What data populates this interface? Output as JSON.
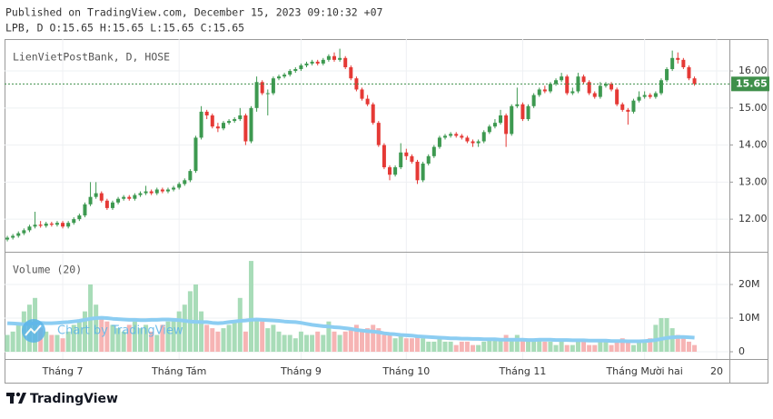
{
  "header": {
    "published": "Published on TradingView.com, December 15, 2023 09:10:32 +07",
    "symbol_line": "LPB, D O:15.65 H:15.65 L:15.65 C:15.65"
  },
  "watermark": "Chart by TradingView",
  "footer": {
    "brand": "TradingView"
  },
  "chart_data": [
    {
      "type": "candlestick",
      "legend": "LienVietPostBank, D, HOSE",
      "up_color": "#3d9950",
      "down_color": "#e53935",
      "grid": true,
      "last_price": 15.65,
      "last_price_color": "#3f8f4a",
      "xlim": [
        -0.5,
        130.3
      ],
      "xticks": [
        {
          "value": 10,
          "label": "Tháng 7"
        },
        {
          "value": 31,
          "label": "Tháng Tám"
        },
        {
          "value": 53,
          "label": "Tháng 9"
        },
        {
          "value": 72,
          "label": "Tháng 10"
        },
        {
          "value": 93,
          "label": "Tháng 11"
        },
        {
          "value": 115,
          "label": "Tháng Mười hai"
        },
        {
          "value": 128,
          "label": "20"
        }
      ],
      "ylim": [
        11.12,
        16.86
      ],
      "yticks": [
        {
          "value": 12,
          "label": "12.00"
        },
        {
          "value": 13,
          "label": "13.00"
        },
        {
          "value": 14,
          "label": "14.00"
        },
        {
          "value": 15,
          "label": "15.00"
        },
        {
          "value": 16,
          "label": "16.00"
        }
      ],
      "ohlc": [
        [
          11.45,
          11.55,
          11.4,
          11.5
        ],
        [
          11.5,
          11.6,
          11.45,
          11.55
        ],
        [
          11.55,
          11.67,
          11.5,
          11.62
        ],
        [
          11.62,
          11.75,
          11.57,
          11.7
        ],
        [
          11.7,
          11.85,
          11.65,
          11.8
        ],
        [
          11.8,
          12.2,
          11.75,
          11.85
        ],
        [
          11.85,
          11.95,
          11.77,
          11.82
        ],
        [
          11.82,
          11.93,
          11.77,
          11.88
        ],
        [
          11.88,
          11.93,
          11.8,
          11.85
        ],
        [
          11.85,
          11.95,
          11.8,
          11.9
        ],
        [
          11.9,
          11.95,
          11.75,
          11.8
        ],
        [
          11.8,
          11.95,
          11.75,
          11.9
        ],
        [
          11.9,
          12.05,
          11.85,
          12.0
        ],
        [
          12.0,
          12.15,
          11.95,
          12.1
        ],
        [
          12.1,
          12.45,
          12.05,
          12.4
        ],
        [
          12.4,
          13.0,
          12.35,
          12.6
        ],
        [
          12.6,
          13.0,
          12.55,
          12.7
        ],
        [
          12.7,
          12.75,
          12.45,
          12.5
        ],
        [
          12.5,
          12.55,
          12.25,
          12.3
        ],
        [
          12.3,
          12.5,
          12.25,
          12.45
        ],
        [
          12.45,
          12.6,
          12.4,
          12.55
        ],
        [
          12.55,
          12.65,
          12.5,
          12.6
        ],
        [
          12.6,
          12.65,
          12.5,
          12.55
        ],
        [
          12.55,
          12.7,
          12.5,
          12.65
        ],
        [
          12.65,
          12.75,
          12.6,
          12.7
        ],
        [
          12.7,
          12.9,
          12.65,
          12.75
        ],
        [
          12.75,
          12.8,
          12.65,
          12.7
        ],
        [
          12.7,
          12.85,
          12.65,
          12.8
        ],
        [
          12.8,
          12.85,
          12.7,
          12.75
        ],
        [
          12.75,
          12.85,
          12.7,
          12.8
        ],
        [
          12.8,
          12.9,
          12.75,
          12.85
        ],
        [
          12.85,
          13.0,
          12.8,
          12.95
        ],
        [
          12.95,
          13.1,
          12.9,
          13.05
        ],
        [
          13.05,
          13.35,
          13.0,
          13.3
        ],
        [
          13.3,
          14.25,
          13.25,
          14.2
        ],
        [
          14.2,
          15.05,
          14.15,
          14.9
        ],
        [
          14.9,
          14.95,
          14.7,
          14.8
        ],
        [
          14.8,
          14.85,
          14.45,
          14.5
        ],
        [
          14.5,
          14.6,
          14.35,
          14.45
        ],
        [
          14.45,
          14.65,
          14.4,
          14.6
        ],
        [
          14.6,
          14.7,
          14.55,
          14.65
        ],
        [
          14.65,
          14.75,
          14.6,
          14.7
        ],
        [
          14.7,
          15.0,
          14.65,
          14.8
        ],
        [
          14.8,
          14.85,
          14.0,
          14.1
        ],
        [
          14.1,
          15.05,
          14.05,
          15.0
        ],
        [
          15.0,
          15.85,
          14.9,
          15.7
        ],
        [
          15.7,
          15.75,
          15.35,
          15.4
        ],
        [
          15.4,
          15.5,
          14.8,
          15.4
        ],
        [
          15.4,
          15.85,
          15.35,
          15.8
        ],
        [
          15.8,
          15.9,
          15.75,
          15.85
        ],
        [
          15.85,
          15.95,
          15.8,
          15.9
        ],
        [
          15.9,
          16.05,
          15.85,
          16.0
        ],
        [
          16.0,
          16.1,
          15.95,
          16.05
        ],
        [
          16.05,
          16.2,
          16.0,
          16.15
        ],
        [
          16.15,
          16.25,
          16.1,
          16.2
        ],
        [
          16.2,
          16.3,
          16.15,
          16.25
        ],
        [
          16.25,
          16.3,
          16.15,
          16.2
        ],
        [
          16.2,
          16.35,
          16.15,
          16.3
        ],
        [
          16.3,
          16.45,
          16.25,
          16.4
        ],
        [
          16.4,
          16.5,
          16.25,
          16.3
        ],
        [
          16.3,
          16.6,
          16.25,
          16.35
        ],
        [
          16.35,
          16.4,
          16.05,
          16.1
        ],
        [
          16.1,
          16.15,
          15.75,
          15.8
        ],
        [
          15.8,
          15.85,
          15.45,
          15.5
        ],
        [
          15.5,
          15.55,
          15.2,
          15.25
        ],
        [
          15.25,
          15.35,
          15.05,
          15.1
        ],
        [
          15.1,
          15.15,
          14.55,
          14.6
        ],
        [
          14.6,
          14.65,
          13.95,
          14.0
        ],
        [
          14.0,
          14.05,
          13.35,
          13.4
        ],
        [
          13.4,
          13.45,
          13.05,
          13.2
        ],
        [
          13.2,
          13.45,
          13.15,
          13.4
        ],
        [
          13.4,
          14.05,
          13.35,
          13.8
        ],
        [
          13.8,
          13.9,
          13.6,
          13.7
        ],
        [
          13.7,
          13.75,
          13.5,
          13.55
        ],
        [
          13.55,
          13.6,
          12.95,
          13.05
        ],
        [
          13.05,
          13.55,
          13.0,
          13.5
        ],
        [
          13.5,
          13.75,
          13.45,
          13.7
        ],
        [
          13.7,
          14.0,
          13.65,
          13.95
        ],
        [
          13.95,
          14.25,
          13.9,
          14.2
        ],
        [
          14.2,
          14.3,
          14.15,
          14.25
        ],
        [
          14.25,
          14.35,
          14.2,
          14.3
        ],
        [
          14.3,
          14.35,
          14.2,
          14.25
        ],
        [
          14.25,
          14.3,
          14.15,
          14.2
        ],
        [
          14.2,
          14.25,
          14.05,
          14.1
        ],
        [
          14.1,
          14.15,
          13.95,
          14.05
        ],
        [
          14.05,
          14.15,
          13.95,
          14.1
        ],
        [
          14.1,
          14.4,
          14.05,
          14.35
        ],
        [
          14.35,
          14.55,
          14.3,
          14.5
        ],
        [
          14.5,
          14.7,
          14.45,
          14.6
        ],
        [
          14.6,
          14.95,
          14.55,
          14.8
        ],
        [
          14.8,
          14.85,
          13.95,
          14.3
        ],
        [
          14.3,
          15.1,
          14.25,
          15.05
        ],
        [
          15.05,
          15.55,
          15.0,
          15.1
        ],
        [
          15.1,
          15.15,
          14.65,
          14.7
        ],
        [
          14.7,
          15.1,
          14.65,
          15.05
        ],
        [
          15.05,
          15.4,
          15.0,
          15.35
        ],
        [
          15.35,
          15.55,
          15.3,
          15.5
        ],
        [
          15.5,
          15.6,
          15.4,
          15.45
        ],
        [
          15.45,
          15.7,
          15.4,
          15.65
        ],
        [
          15.65,
          15.8,
          15.6,
          15.75
        ],
        [
          15.75,
          15.95,
          15.7,
          15.85
        ],
        [
          15.85,
          15.9,
          15.35,
          15.4
        ],
        [
          15.4,
          15.55,
          15.35,
          15.45
        ],
        [
          15.45,
          15.95,
          15.4,
          15.85
        ],
        [
          15.85,
          15.9,
          15.65,
          15.7
        ],
        [
          15.7,
          15.75,
          15.35,
          15.4
        ],
        [
          15.4,
          15.45,
          15.25,
          15.3
        ],
        [
          15.3,
          15.7,
          15.25,
          15.6
        ],
        [
          15.6,
          15.7,
          15.55,
          15.65
        ],
        [
          15.65,
          15.7,
          15.45,
          15.5
        ],
        [
          15.5,
          15.55,
          15.05,
          15.1
        ],
        [
          15.1,
          15.15,
          14.9,
          14.95
        ],
        [
          14.95,
          15.0,
          14.55,
          14.9
        ],
        [
          14.9,
          15.25,
          14.85,
          15.2
        ],
        [
          15.2,
          15.45,
          15.15,
          15.3
        ],
        [
          15.3,
          15.45,
          15.25,
          15.35
        ],
        [
          15.35,
          15.4,
          15.25,
          15.3
        ],
        [
          15.3,
          15.45,
          15.25,
          15.4
        ],
        [
          15.4,
          15.8,
          15.35,
          15.75
        ],
        [
          15.75,
          16.1,
          15.7,
          16.05
        ],
        [
          16.05,
          16.55,
          16.0,
          16.35
        ],
        [
          16.35,
          16.5,
          16.2,
          16.3
        ],
        [
          16.3,
          16.35,
          16.05,
          16.1
        ],
        [
          16.1,
          16.15,
          15.75,
          15.8
        ],
        [
          15.8,
          15.85,
          15.6,
          15.65
        ]
      ]
    },
    {
      "type": "bar",
      "title": "Volume (20)",
      "up_color": "#a8dcb8",
      "down_color": "#f6b4b4",
      "ma_color": "#8ccdf2",
      "grid": true,
      "ylim": [
        -2160000,
        29460000
      ],
      "yticks": [
        {
          "value": 0,
          "label": "0"
        },
        {
          "value": 10000000,
          "label": "10M"
        },
        {
          "value": 20000000,
          "label": "20M"
        }
      ],
      "values": [
        5000000,
        6000000,
        8000000,
        12000000,
        14000000,
        16000000,
        7000000,
        6000000,
        5000000,
        5000000,
        4000000,
        6000000,
        8000000,
        9000000,
        12000000,
        20000000,
        14000000,
        10000000,
        9000000,
        8000000,
        7000000,
        6000000,
        8000000,
        9000000,
        7000000,
        8000000,
        6000000,
        5000000,
        8000000,
        9000000,
        10000000,
        12000000,
        14000000,
        18000000,
        20000000,
        12000000,
        8000000,
        7000000,
        6000000,
        7000000,
        8000000,
        9000000,
        16000000,
        6000000,
        27000000,
        10000000,
        9000000,
        7000000,
        8000000,
        6000000,
        5000000,
        5000000,
        4000000,
        6000000,
        5000000,
        5000000,
        6000000,
        5000000,
        9000000,
        6000000,
        5000000,
        6000000,
        7000000,
        8000000,
        6000000,
        7000000,
        8000000,
        7000000,
        5000000,
        5000000,
        4000000,
        5000000,
        4000000,
        4000000,
        5000000,
        4000000,
        3000000,
        3000000,
        4000000,
        3000000,
        3000000,
        2000000,
        3000000,
        3000000,
        2000000,
        2000000,
        3000000,
        4000000,
        4000000,
        4000000,
        5000000,
        4000000,
        5000000,
        4000000,
        3000000,
        3000000,
        4000000,
        3000000,
        3000000,
        2000000,
        3000000,
        2000000,
        2000000,
        3000000,
        3000000,
        2000000,
        2000000,
        3000000,
        3000000,
        2000000,
        3000000,
        4000000,
        3000000,
        2000000,
        3000000,
        3000000,
        4000000,
        8000000,
        10000000,
        10000000,
        7000000,
        5000000,
        4000000,
        3000000,
        2000000
      ],
      "ma": [
        8500000,
        8400000,
        8300000,
        8200000,
        8300000,
        8500000,
        8600000,
        8500000,
        8500000,
        8600000,
        8700000,
        8800000,
        9000000,
        9200000,
        9500000,
        9800000,
        10000000,
        10100000,
        10000000,
        9800000,
        9700000,
        9600000,
        9500000,
        9500000,
        9400000,
        9400000,
        9500000,
        9500000,
        9600000,
        9600000,
        9500000,
        9400000,
        9200000,
        9000000,
        8900000,
        8800000,
        8800000,
        8600000,
        8500000,
        8600000,
        8800000,
        9000000,
        9200000,
        9300000,
        9500000,
        9600000,
        9500000,
        9400000,
        9300000,
        9200000,
        9000000,
        8900000,
        8800000,
        8600000,
        8300000,
        8000000,
        7800000,
        7600000,
        7500000,
        7300000,
        7200000,
        7000000,
        6800000,
        6500000,
        6300000,
        6100000,
        6000000,
        5800000,
        5500000,
        5300000,
        5200000,
        5000000,
        4900000,
        4800000,
        4600000,
        4500000,
        4400000,
        4300000,
        4200000,
        4100000,
        4000000,
        4000000,
        3900000,
        3900000,
        3800000,
        3800000,
        3700000,
        3700000,
        3700000,
        3600000,
        3600000,
        3600000,
        3600000,
        3600000,
        3500000,
        3500000,
        3600000,
        3600000,
        3600000,
        3500000,
        3500000,
        3500000,
        3400000,
        3400000,
        3400000,
        3300000,
        3300000,
        3300000,
        3300000,
        3200000,
        3200000,
        3200000,
        3100000,
        3100000,
        3100000,
        3200000,
        3300000,
        3500000,
        3800000,
        4100000,
        4300000,
        4400000,
        4400000,
        4300000,
        4200000
      ]
    }
  ]
}
